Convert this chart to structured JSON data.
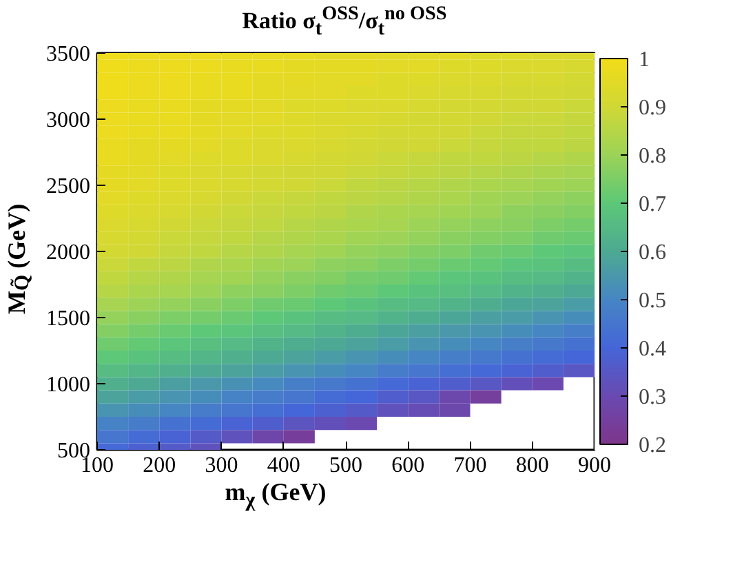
{
  "chart_data": {
    "type": "heatmap",
    "title": "Ratio σ$_{t}$$^{OSS}$/σ$_{t}$$^{no OSS}$",
    "xlabel": "m$_{χ}$ (GeV)",
    "ylabel": "M$_{Q̃}$ (GeV)",
    "x": [
      125,
      175,
      225,
      275,
      325,
      375,
      425,
      475,
      525,
      575,
      625,
      675,
      725,
      775,
      825,
      875
    ],
    "y": [
      3500,
      3400,
      3300,
      3200,
      3100,
      3000,
      2900,
      2800,
      2700,
      2600,
      2500,
      2400,
      2300,
      2200,
      2100,
      2000,
      1900,
      1800,
      1700,
      1600,
      1500,
      1400,
      1300,
      1200,
      1100,
      1000,
      900,
      800,
      700,
      600,
      500
    ],
    "xlim": [
      100,
      900
    ],
    "xticks": [
      100,
      200,
      300,
      400,
      500,
      600,
      700,
      800,
      900
    ],
    "ylim": [
      500,
      3500
    ],
    "yticks": [
      500,
      1000,
      1500,
      2000,
      2500,
      3000,
      3500
    ],
    "clim": [
      0.2,
      1
    ],
    "cticks": [
      0.2,
      0.3,
      0.4,
      0.5,
      0.6,
      0.7,
      0.8,
      0.9,
      1
    ],
    "grid": false,
    "cells": [
      [
        0.99,
        0.98,
        0.98,
        0.98,
        0.97,
        0.97,
        0.97,
        0.96,
        0.96,
        0.95,
        0.95,
        0.95,
        0.94,
        0.94,
        0.93,
        0.93
      ],
      [
        0.99,
        0.98,
        0.98,
        0.98,
        0.97,
        0.97,
        0.96,
        0.96,
        0.96,
        0.95,
        0.95,
        0.94,
        0.94,
        0.93,
        0.93,
        0.92
      ],
      [
        0.99,
        0.98,
        0.98,
        0.97,
        0.97,
        0.96,
        0.96,
        0.95,
        0.95,
        0.94,
        0.94,
        0.93,
        0.93,
        0.92,
        0.92,
        0.91
      ],
      [
        0.99,
        0.98,
        0.98,
        0.97,
        0.97,
        0.96,
        0.95,
        0.95,
        0.94,
        0.94,
        0.93,
        0.92,
        0.92,
        0.91,
        0.91,
        0.9
      ],
      [
        0.98,
        0.97,
        0.97,
        0.96,
        0.96,
        0.95,
        0.94,
        0.94,
        0.93,
        0.93,
        0.92,
        0.91,
        0.91,
        0.9,
        0.9,
        0.89
      ],
      [
        0.98,
        0.97,
        0.97,
        0.96,
        0.95,
        0.95,
        0.94,
        0.93,
        0.93,
        0.92,
        0.91,
        0.91,
        0.9,
        0.89,
        0.89,
        0.88
      ],
      [
        0.98,
        0.97,
        0.97,
        0.96,
        0.95,
        0.94,
        0.94,
        0.93,
        0.92,
        0.91,
        0.91,
        0.9,
        0.89,
        0.88,
        0.88,
        0.87
      ],
      [
        0.97,
        0.96,
        0.96,
        0.95,
        0.94,
        0.93,
        0.93,
        0.92,
        0.91,
        0.9,
        0.9,
        0.89,
        0.88,
        0.87,
        0.87,
        0.86
      ],
      [
        0.97,
        0.96,
        0.95,
        0.94,
        0.94,
        0.93,
        0.92,
        0.91,
        0.9,
        0.89,
        0.88,
        0.87,
        0.87,
        0.86,
        0.85,
        0.84
      ],
      [
        0.96,
        0.95,
        0.94,
        0.93,
        0.92,
        0.91,
        0.9,
        0.9,
        0.89,
        0.88,
        0.87,
        0.86,
        0.85,
        0.84,
        0.83,
        0.82
      ],
      [
        0.96,
        0.95,
        0.94,
        0.93,
        0.92,
        0.91,
        0.9,
        0.89,
        0.87,
        0.86,
        0.85,
        0.84,
        0.83,
        0.82,
        0.81,
        0.8
      ],
      [
        0.95,
        0.94,
        0.93,
        0.92,
        0.9,
        0.89,
        0.88,
        0.87,
        0.86,
        0.85,
        0.84,
        0.83,
        0.81,
        0.8,
        0.79,
        0.78
      ],
      [
        0.94,
        0.93,
        0.92,
        0.9,
        0.89,
        0.88,
        0.87,
        0.86,
        0.84,
        0.83,
        0.82,
        0.81,
        0.8,
        0.78,
        0.77,
        0.76
      ],
      [
        0.93,
        0.92,
        0.9,
        0.89,
        0.88,
        0.87,
        0.85,
        0.84,
        0.83,
        0.82,
        0.8,
        0.79,
        0.78,
        0.77,
        0.75,
        0.74
      ],
      [
        0.92,
        0.91,
        0.89,
        0.88,
        0.87,
        0.85,
        0.84,
        0.83,
        0.81,
        0.8,
        0.79,
        0.77,
        0.76,
        0.75,
        0.73,
        0.72
      ],
      [
        0.91,
        0.9,
        0.88,
        0.87,
        0.85,
        0.84,
        0.82,
        0.81,
        0.79,
        0.78,
        0.76,
        0.75,
        0.73,
        0.72,
        0.7,
        0.69
      ],
      [
        0.89,
        0.87,
        0.86,
        0.84,
        0.83,
        0.81,
        0.8,
        0.78,
        0.77,
        0.75,
        0.74,
        0.72,
        0.71,
        0.69,
        0.68,
        0.66
      ],
      [
        0.87,
        0.85,
        0.84,
        0.82,
        0.81,
        0.79,
        0.77,
        0.76,
        0.74,
        0.73,
        0.71,
        0.69,
        0.68,
        0.66,
        0.65,
        0.63
      ],
      [
        0.85,
        0.83,
        0.82,
        0.8,
        0.78,
        0.77,
        0.75,
        0.73,
        0.72,
        0.7,
        0.68,
        0.67,
        0.65,
        0.63,
        0.62,
        0.6
      ],
      [
        0.82,
        0.8,
        0.79,
        0.77,
        0.75,
        0.73,
        0.72,
        0.7,
        0.68,
        0.66,
        0.65,
        0.63,
        0.61,
        0.59,
        0.58,
        0.56
      ],
      [
        0.79,
        0.77,
        0.75,
        0.74,
        0.72,
        0.7,
        0.68,
        0.66,
        0.65,
        0.63,
        0.61,
        0.59,
        0.57,
        0.56,
        0.54,
        0.52
      ],
      [
        0.76,
        0.74,
        0.72,
        0.7,
        0.69,
        0.67,
        0.65,
        0.63,
        0.61,
        0.59,
        0.57,
        0.55,
        0.54,
        0.52,
        0.5,
        0.48
      ],
      [
        0.73,
        0.71,
        0.69,
        0.67,
        0.65,
        0.63,
        0.61,
        0.6,
        0.58,
        0.56,
        0.54,
        0.52,
        0.5,
        0.48,
        0.46,
        0.44
      ],
      [
        0.7,
        0.68,
        0.66,
        0.64,
        0.62,
        0.6,
        0.58,
        0.56,
        0.54,
        0.52,
        0.5,
        0.48,
        0.46,
        0.44,
        0.42,
        0.4
      ],
      [
        0.66,
        0.64,
        0.62,
        0.6,
        0.58,
        0.56,
        0.54,
        0.52,
        0.5,
        0.47,
        0.45,
        0.43,
        0.41,
        0.39,
        0.37,
        0.35
      ],
      [
        0.62,
        0.6,
        0.57,
        0.55,
        0.53,
        0.51,
        0.48,
        0.46,
        0.44,
        0.41,
        0.39,
        0.37,
        0.35,
        0.32,
        0.3,
        null
      ],
      [
        0.58,
        0.56,
        0.54,
        0.52,
        0.49,
        0.47,
        0.45,
        0.42,
        0.4,
        0.37,
        0.35,
        0.29,
        0.25,
        null,
        null,
        null
      ],
      [
        0.54,
        0.52,
        0.5,
        0.47,
        0.45,
        0.43,
        0.4,
        0.38,
        0.36,
        0.33,
        0.31,
        0.29,
        null,
        null,
        null,
        null
      ],
      [
        0.49,
        0.47,
        0.44,
        0.42,
        0.39,
        0.37,
        0.34,
        0.32,
        0.3,
        null,
        null,
        null,
        null,
        null,
        null,
        null
      ],
      [
        0.45,
        0.42,
        0.39,
        0.36,
        0.33,
        0.28,
        0.24,
        null,
        null,
        null,
        null,
        null,
        null,
        null,
        null,
        null
      ],
      [
        0.41,
        0.38,
        0.36,
        0.33,
        null,
        null,
        null,
        null,
        null,
        null,
        null,
        null,
        null,
        null,
        null,
        null
      ]
    ]
  }
}
